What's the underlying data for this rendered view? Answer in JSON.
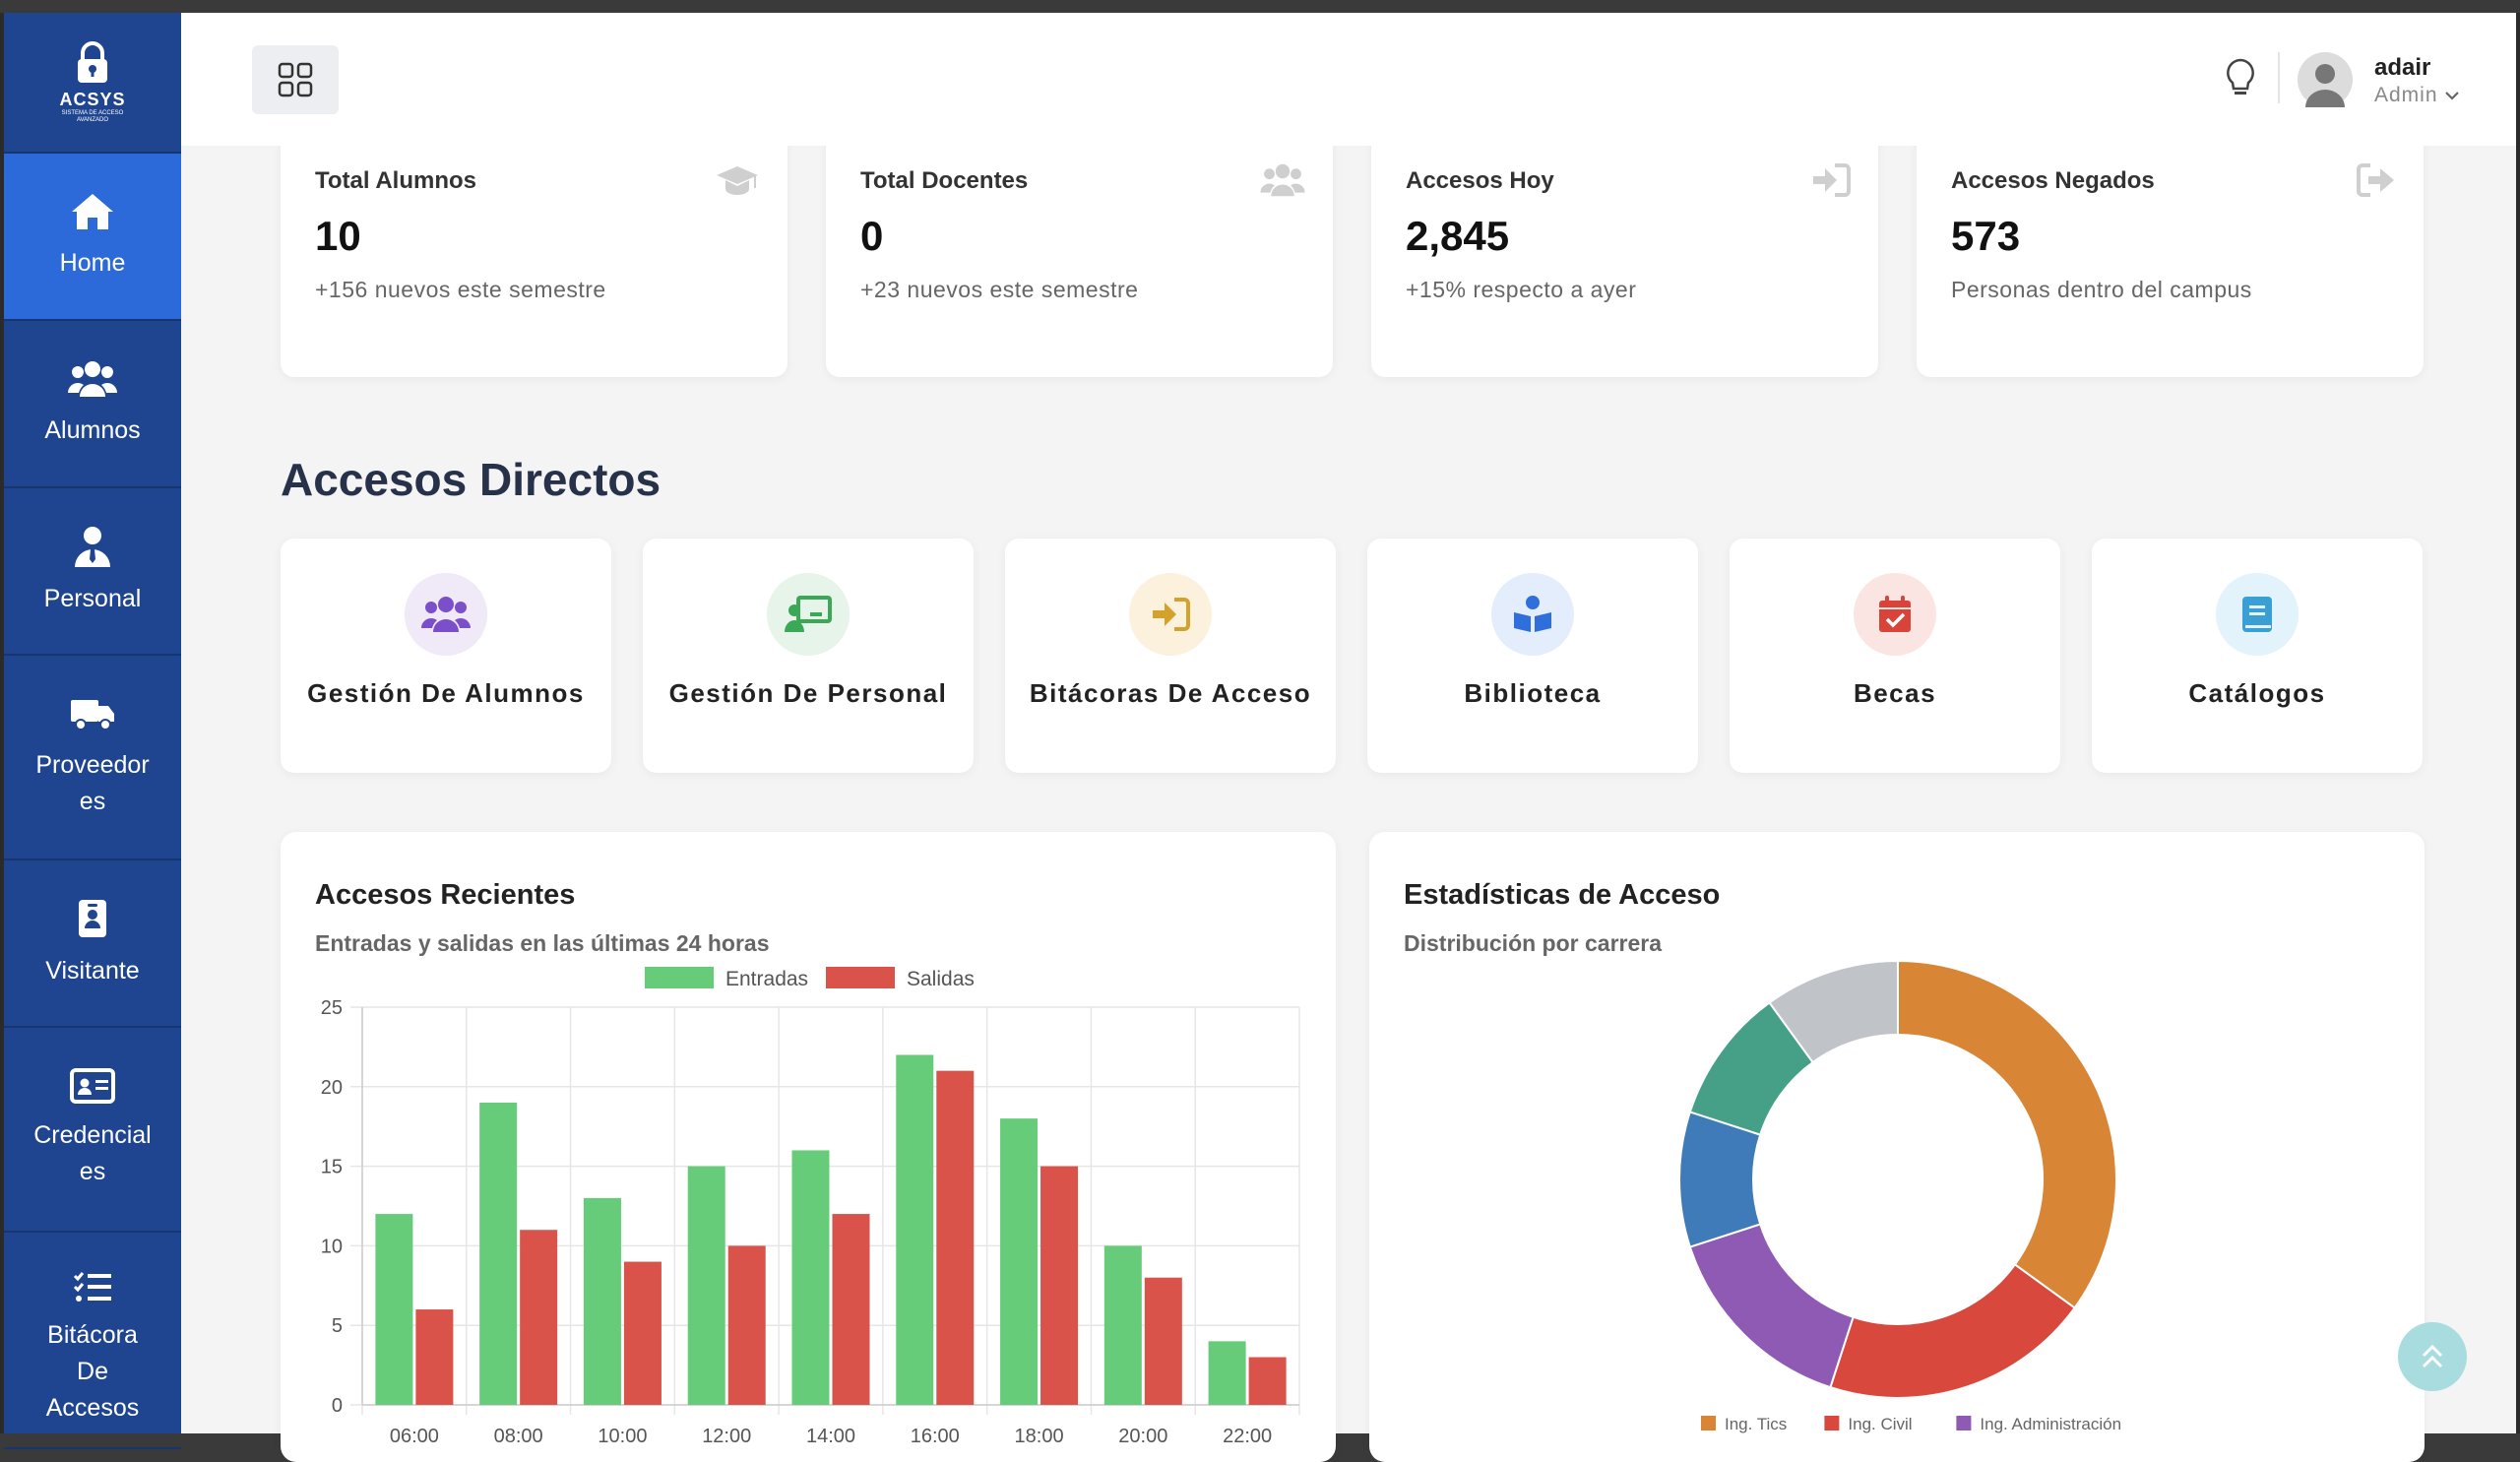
{
  "sidebar": {
    "logo": {
      "title": "ACSYS",
      "subtitle": "SISTEMA DE ACCESO AVANZADO"
    },
    "items": [
      {
        "label": "Home",
        "icon": "home-icon",
        "active": true
      },
      {
        "label": "Alumnos",
        "icon": "users-icon"
      },
      {
        "label": "Personal",
        "icon": "user-tie-icon"
      },
      {
        "label": "Proveedores",
        "icon": "truck-icon"
      },
      {
        "label": "Visitante",
        "icon": "id-badge-icon"
      },
      {
        "label": "Credenciales",
        "icon": "id-card-icon"
      },
      {
        "label": "Bitácora De Accesos",
        "icon": "list-check-icon"
      }
    ]
  },
  "topbar": {
    "user": {
      "name": "adair",
      "role": "Admin"
    }
  },
  "stats": [
    {
      "title": "Total Alumnos",
      "value": "10",
      "sub": "+156 nuevos este semestre",
      "icon": "graduation-cap-icon"
    },
    {
      "title": "Total Docentes",
      "value": "0",
      "sub": "+23 nuevos este semestre",
      "icon": "users-icon"
    },
    {
      "title": "Accesos Hoy",
      "value": "2,845",
      "sub": "+15% respecto a ayer",
      "icon": "sign-in-icon"
    },
    {
      "title": "Accesos Negados",
      "value": "573",
      "sub": "Personas dentro del campus",
      "icon": "sign-out-icon"
    }
  ],
  "shortcuts": {
    "title": "Accesos Directos",
    "items": [
      {
        "label": "Gestión De Alumnos",
        "icon": "users-icon",
        "color": "#7b4fc9",
        "bg": "#efe9f8"
      },
      {
        "label": "Gestión De Personal",
        "icon": "chalkboard-teacher-icon",
        "color": "#3aa856",
        "bg": "#e6f4ea"
      },
      {
        "label": "Bitácoras De Acceso",
        "icon": "sign-in-icon",
        "color": "#d4a12a",
        "bg": "#fbf1dc"
      },
      {
        "label": "Biblioteca",
        "icon": "book-reader-icon",
        "color": "#2f6fdc",
        "bg": "#e4edfb"
      },
      {
        "label": "Becas",
        "icon": "calendar-check-icon",
        "color": "#d8443a",
        "bg": "#fbe5e3"
      },
      {
        "label": "Catálogos",
        "icon": "book-icon",
        "color": "#3a9fd4",
        "bg": "#e3f3fb"
      }
    ]
  },
  "recent": {
    "title": "Accesos Recientes",
    "subtitle": "Entradas y salidas en las últimas 24 horas"
  },
  "stats_panel": {
    "title": "Estadísticas de Acceso",
    "subtitle": "Distribución por carrera"
  },
  "chart_data": [
    {
      "type": "bar",
      "categories": [
        "06:00",
        "08:00",
        "10:00",
        "12:00",
        "14:00",
        "16:00",
        "18:00",
        "20:00",
        "22:00"
      ],
      "series": [
        {
          "name": "Entradas",
          "values": [
            12,
            19,
            13,
            15,
            16,
            22,
            18,
            10,
            4
          ],
          "color": "#66cc7a"
        },
        {
          "name": "Salidas",
          "values": [
            6,
            11,
            9,
            10,
            12,
            21,
            15,
            8,
            3
          ],
          "color": "#d9534a"
        }
      ],
      "ylim": [
        0,
        25
      ],
      "yticks": [
        0,
        5,
        10,
        15,
        20,
        25
      ],
      "grid": true,
      "legend": "top-center"
    },
    {
      "type": "pie",
      "donut": true,
      "slices": [
        {
          "label": "Ing. Tics",
          "value": 35,
          "color": "#d98536"
        },
        {
          "label": "Ing. Civil",
          "value": 20,
          "color": "#d9483d"
        },
        {
          "label": "Ing. Administración",
          "value": 15,
          "color": "#8e5ab4"
        },
        {
          "label": "",
          "value": 10,
          "color": "#3f7bb8"
        },
        {
          "label": "",
          "value": 10,
          "color": "#45a087"
        },
        {
          "label": "",
          "value": 10,
          "color": "#c0c4c8"
        }
      ],
      "legend": "bottom"
    }
  ]
}
